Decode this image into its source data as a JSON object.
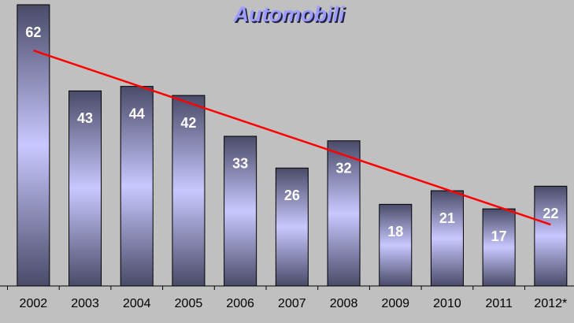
{
  "chart_data": {
    "type": "bar",
    "title": "Automobili",
    "categories": [
      "2002",
      "2003",
      "2004",
      "2005",
      "2006",
      "2007",
      "2008",
      "2009",
      "2010",
      "2011",
      "2012*"
    ],
    "values": [
      62,
      43,
      44,
      42,
      33,
      26,
      32,
      18,
      21,
      17,
      22
    ],
    "color": "#c8c8ff",
    "ylim": [
      0,
      62
    ],
    "trendline": {
      "color": "#ff0000"
    }
  }
}
